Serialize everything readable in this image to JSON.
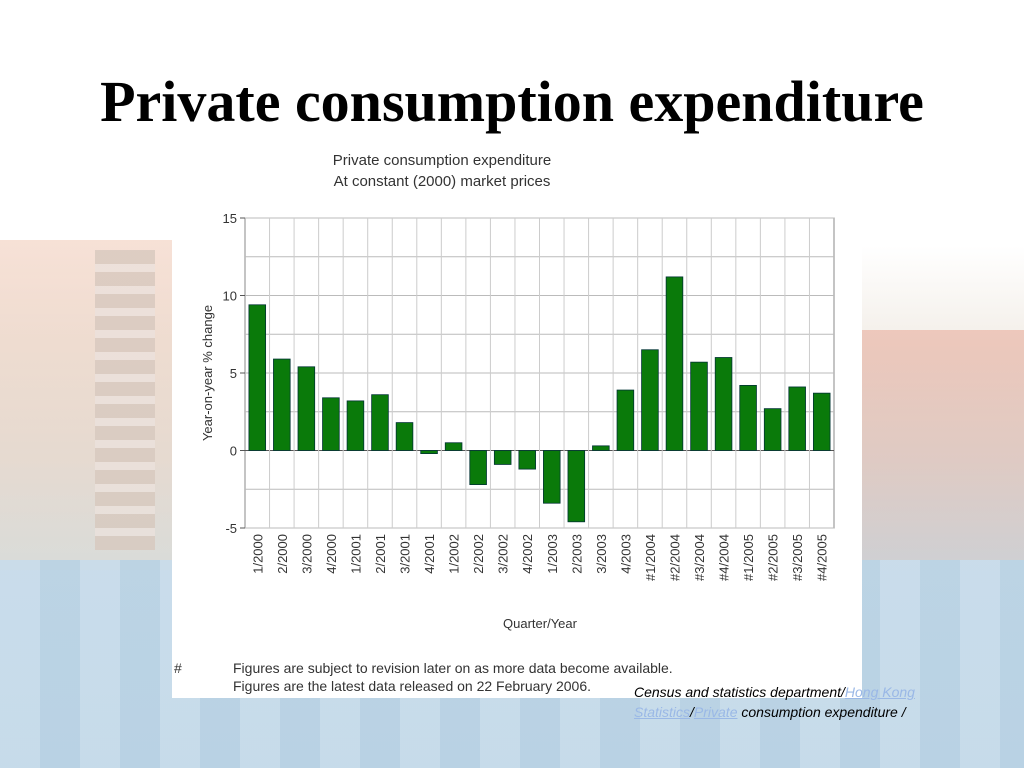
{
  "slide": {
    "title": "Private consumption expenditure"
  },
  "chart_data": {
    "type": "bar",
    "title": "Private consumption expenditure",
    "subtitle": "At constant (2000) market prices",
    "xlabel": "Quarter/Year",
    "ylabel": "Year-on-year % change",
    "ylim": [
      -5,
      15
    ],
    "yticks": [
      15,
      10,
      5,
      0,
      -5
    ],
    "grid": true,
    "bar_color": "#0a7a0a",
    "categories": [
      "1/2000",
      "2/2000",
      "3/2000",
      "4/2000",
      "1/2001",
      "2/2001",
      "3/2001",
      "4/2001",
      "1/2002",
      "2/2002",
      "3/2002",
      "4/2002",
      "1/2003",
      "2/2003",
      "3/2003",
      "4/2003",
      "#1/2004",
      "#2/2004",
      "#3/2004",
      "#4/2004",
      "#1/2005",
      "#2/2005",
      "#3/2005",
      "#4/2005"
    ],
    "values": [
      9.4,
      5.9,
      5.4,
      3.4,
      3.2,
      3.6,
      1.8,
      -0.2,
      0.5,
      -2.2,
      -0.9,
      -1.2,
      -3.4,
      -4.6,
      0.3,
      3.9,
      6.5,
      11.2,
      5.7,
      6.0,
      4.2,
      2.7,
      4.1,
      3.7
    ],
    "footnote": {
      "marker": "#",
      "line1": "Figures are subject to revision later on as more data become available.",
      "line2": "Figures are the latest data released on 22 February 2006."
    }
  },
  "source": {
    "prefix": "Census and statistics department/",
    "link1": "Hong Kong Statistics",
    "sep": "/",
    "link2": "Private",
    "suffix": " consumption expenditure /"
  }
}
